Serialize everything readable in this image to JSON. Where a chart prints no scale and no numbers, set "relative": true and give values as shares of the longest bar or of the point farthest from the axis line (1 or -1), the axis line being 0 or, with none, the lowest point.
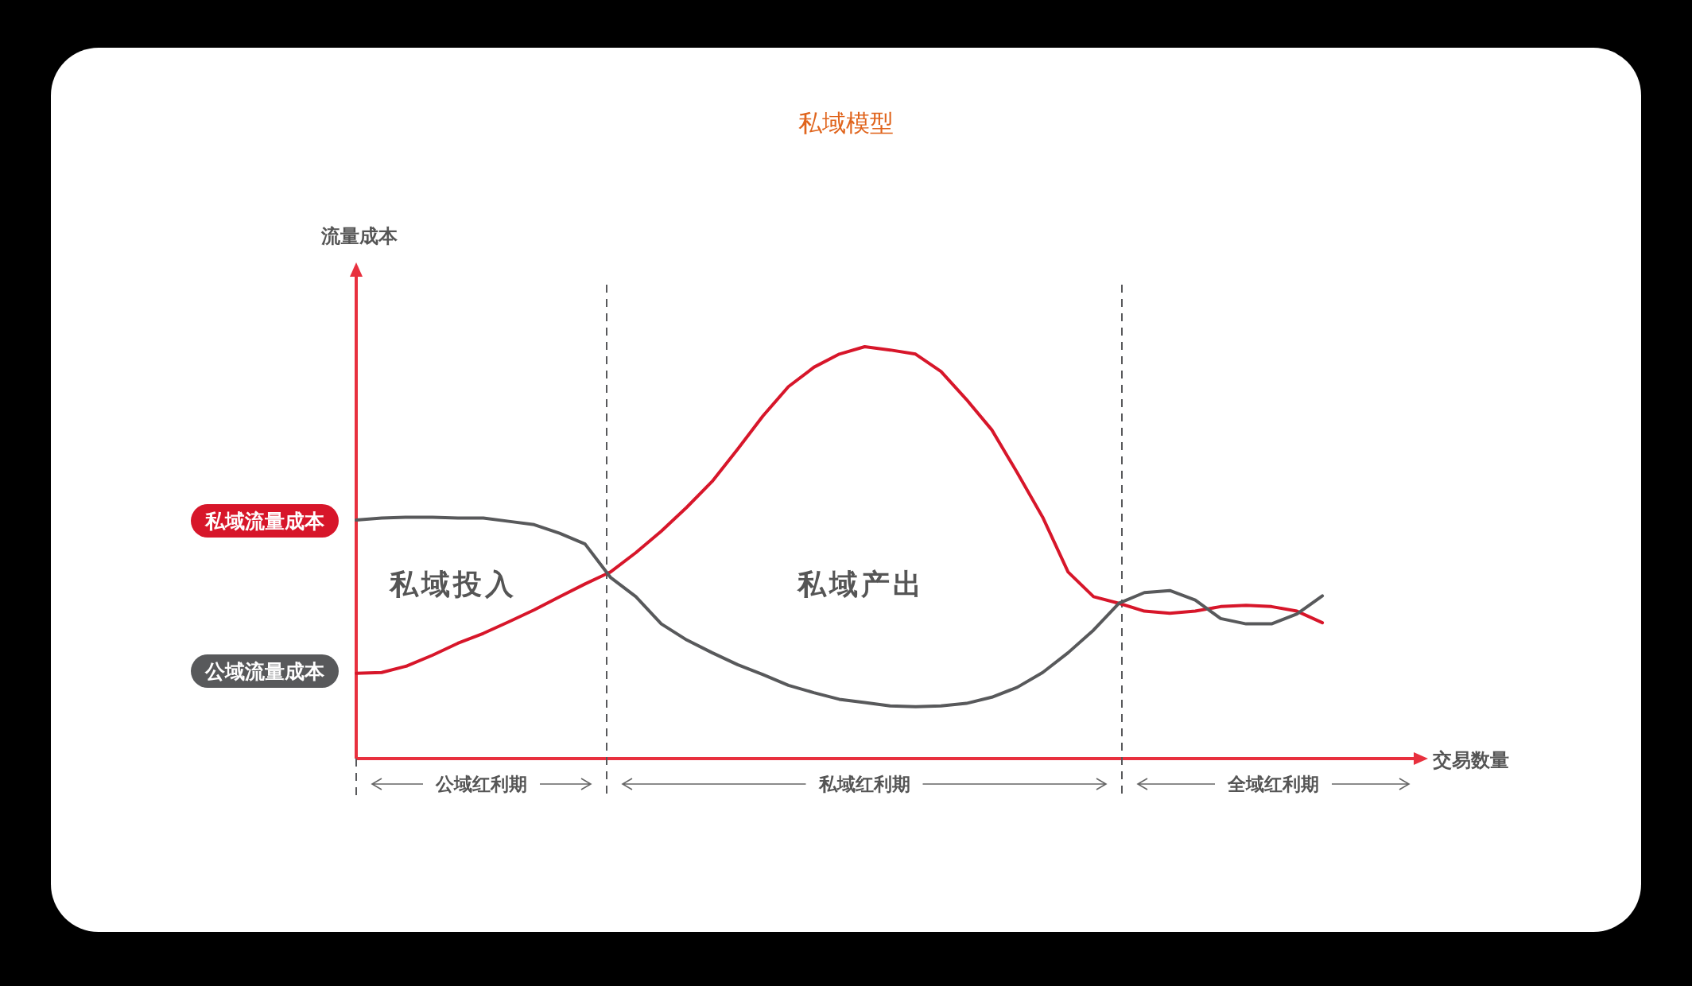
{
  "chart_data": {
    "type": "line",
    "title": "私域模型",
    "xlabel": "交易数量",
    "relative": true,
    "marker": "none",
    "line_style": "solid",
    "categories": [
      null,
      null,
      null,
      null,
      null,
      null,
      null,
      null,
      null,
      null,
      null,
      null,
      null,
      null,
      null,
      null,
      null,
      null,
      null,
      null,
      null,
      null,
      null,
      null,
      null,
      null,
      null,
      null,
      null,
      null,
      null,
      null,
      null,
      null,
      null,
      null,
      null,
      null,
      null,
      null,
      null,
      null,
      null
    ],
    "series": [
      {
        "color": "#d7162a",
        "values": [
          0.207,
          0.209,
          0.225,
          0.251,
          0.28,
          0.304,
          0.332,
          0.361,
          0.393,
          0.424,
          0.453,
          0.5,
          0.552,
          0.61,
          0.673,
          0.751,
          0.832,
          0.903,
          0.95,
          0.982,
          1,
          0.992,
          0.982,
          0.94,
          0.872,
          0.798,
          0.694,
          0.586,
          0.453,
          0.393,
          0.377,
          0.358,
          0.353,
          0.358,
          0.369,
          0.372,
          0.369,
          0.358,
          0.33,
          null,
          null,
          null,
          null
        ]
      },
      {
        "color": "#58595b",
        "values": [
          0.579,
          0.584,
          0.586,
          0.586,
          0.584,
          0.584,
          0.576,
          0.568,
          0.547,
          0.521,
          0.44,
          0.393,
          0.327,
          0.288,
          0.257,
          0.228,
          0.204,
          0.178,
          0.16,
          0.144,
          0.136,
          0.128,
          0.126,
          0.128,
          0.134,
          0.149,
          0.173,
          0.209,
          0.257,
          0.312,
          0.377,
          0.403,
          0.408,
          0.385,
          0.34,
          0.327,
          0.327,
          0.351,
          0.395,
          null,
          null,
          null,
          null
        ]
      }
    ],
    "annotations": [
      "私域流量成本",
      "公域流量成本",
      "私域投入",
      "私域产出",
      "公域红利期",
      "私域红利期",
      "全域红利期",
      "流量成本"
    ]
  }
}
